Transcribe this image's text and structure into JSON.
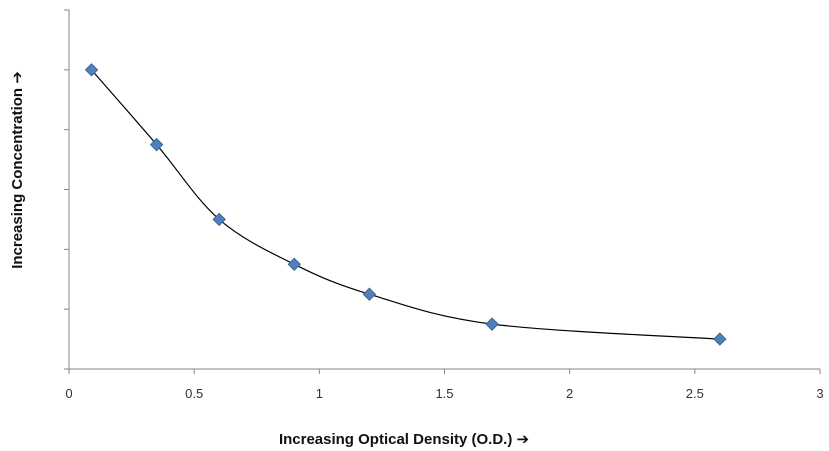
{
  "chart_data": {
    "type": "scatter",
    "title": "",
    "xlabel": "Increasing Optical Density (O.D.) ➔",
    "ylabel": "Increasing Concentration ➔",
    "xlim": [
      0,
      3
    ],
    "x_ticks": [
      "0",
      "0.5",
      "1",
      "1.5",
      "2",
      "2.5",
      "3"
    ],
    "y_tick_labels_shown": false,
    "grid": false,
    "legend": "none",
    "marker": "diamond",
    "trendline": "smooth curve through points",
    "series": [
      {
        "x": [
          0.09,
          0.35,
          0.6,
          0.9,
          1.2,
          1.69,
          2.6
        ],
        "y": [
          5.0,
          3.75,
          2.5,
          1.75,
          1.25,
          0.75,
          0.5
        ]
      }
    ],
    "colors": {
      "marker": "#4f81bd",
      "marker_edge": "#3a6496",
      "curve": "#000000",
      "axis": "#868686"
    }
  }
}
